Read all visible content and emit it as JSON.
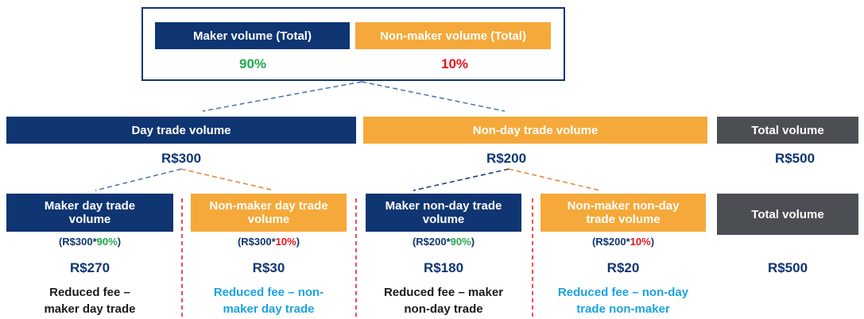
{
  "top": {
    "maker_label": "Maker volume (Total)",
    "maker_pct": "90%",
    "nonmaker_label": "Non-maker volume (Total)",
    "nonmaker_pct": "10%"
  },
  "row2": [
    {
      "label": "Day trade volume",
      "amount": "R$300"
    },
    {
      "label": "Non-day trade volume",
      "amount": "R$200"
    },
    {
      "label": "Total volume",
      "amount": "R$500"
    }
  ],
  "row3": [
    {
      "label": [
        "Maker day trade",
        "volume"
      ],
      "formula": [
        "(R$300*",
        "90%",
        ")"
      ],
      "amount": "R$270",
      "description": [
        "Reduced fee –",
        "maker day trade"
      ]
    },
    {
      "label": [
        "Non-maker day trade",
        "volume"
      ],
      "formula": [
        "(R$300*",
        "10%",
        ")"
      ],
      "amount": "R$30",
      "description": [
        "Reduced fee – non-",
        "maker day trade"
      ]
    },
    {
      "label": [
        "Maker non-day trade",
        "volume"
      ],
      "formula": [
        "(R$200*",
        "90%",
        ")"
      ],
      "amount": "R$180",
      "description": [
        "Reduced fee – maker",
        "non-day trade"
      ]
    },
    {
      "label": [
        "Non-maker non-day",
        "trade volume"
      ],
      "formula": [
        "(R$200*",
        "10%",
        ")"
      ],
      "amount": "R$20",
      "description": [
        "Reduced fee – non-day",
        "trade non-maker"
      ]
    },
    {
      "label": [
        "Total volume"
      ],
      "amount": "R$500"
    }
  ]
}
